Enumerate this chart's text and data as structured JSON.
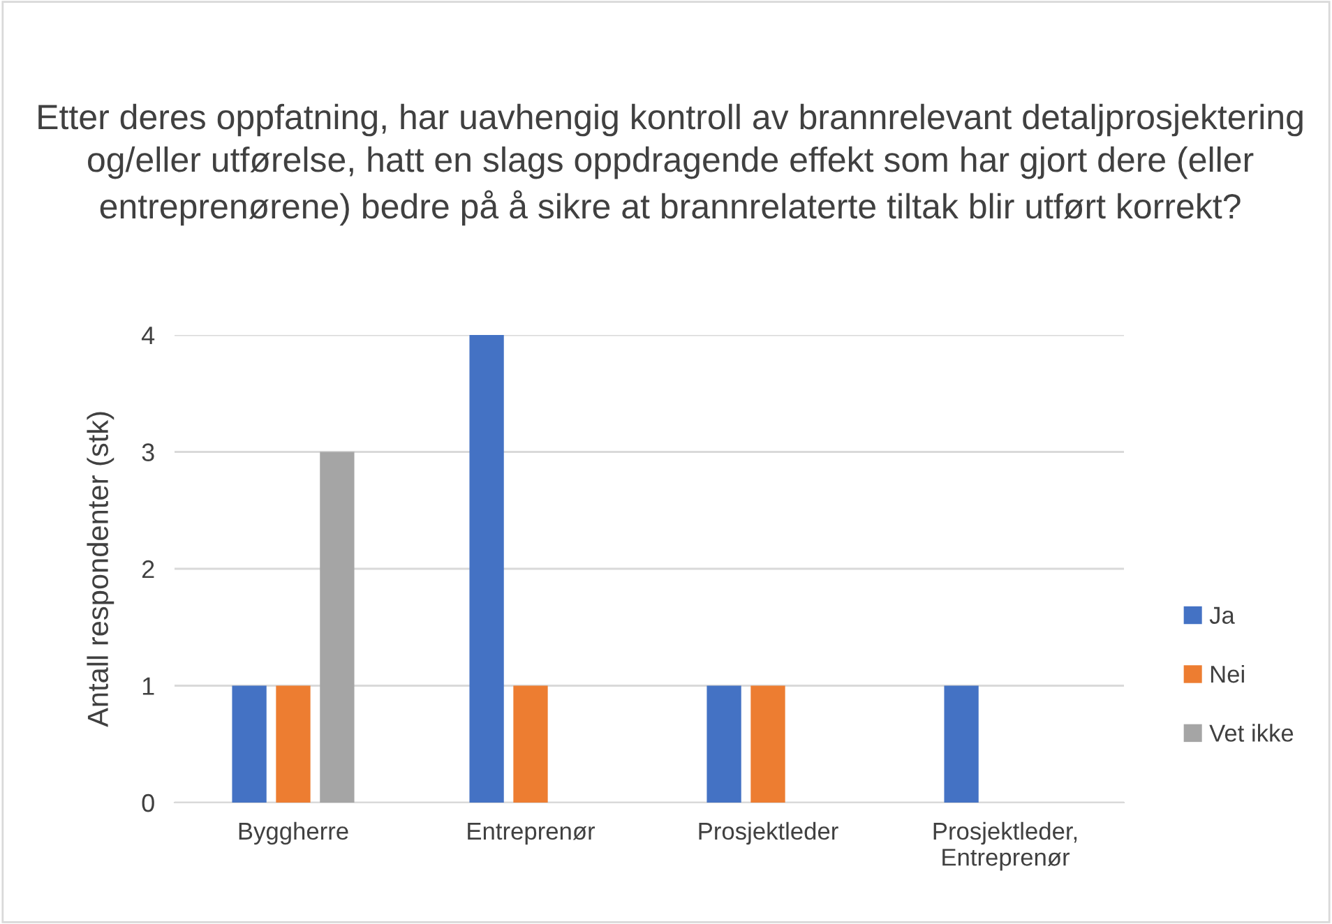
{
  "chart_data": {
    "type": "bar",
    "title": "Etter deres oppfatning, har uavhengig kontroll av brannrelevant detaljprosjektering og/eller utførelse, hatt en slags oppdragende effekt som har gjort dere (eller entreprenørene) bedre på å sikre at brannrelaterte tiltak blir utført korrekt?",
    "ylabel": "Antall respondenter (stk)",
    "categories": [
      "Byggherre",
      "Entreprenør",
      "Prosjektleder",
      "Prosjektleder,\nEntreprenør"
    ],
    "series": [
      {
        "name": "Ja",
        "color": "#4472c4",
        "values": [
          1,
          4,
          1,
          1
        ]
      },
      {
        "name": "Nei",
        "color": "#ed7d31",
        "values": [
          1,
          1,
          1,
          0
        ]
      },
      {
        "name": "Vet ikke",
        "color": "#a5a5a5",
        "values": [
          3,
          0,
          0,
          0
        ]
      }
    ],
    "ylim": [
      0,
      4
    ],
    "yticks": [
      0,
      1,
      2,
      3,
      4
    ],
    "grid": "y",
    "legend": "right"
  }
}
